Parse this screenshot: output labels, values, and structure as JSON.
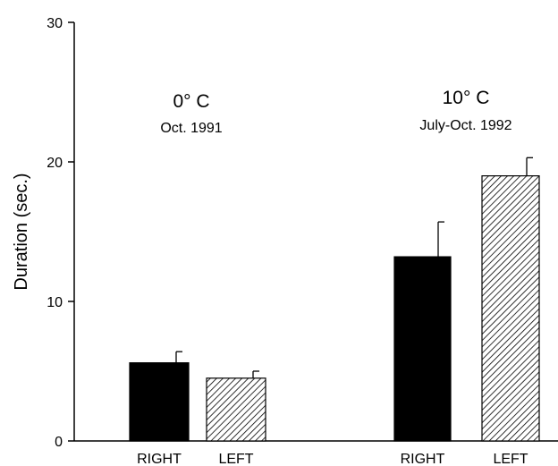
{
  "chart_data": {
    "type": "bar",
    "title": "",
    "xlabel": "",
    "ylabel": "Duration (sec.)",
    "ylim": [
      0,
      30
    ],
    "yticks": [
      0,
      10,
      20,
      30
    ],
    "grid": false,
    "legend": "none",
    "groups": [
      {
        "title": "0° C",
        "subtitle": "Oct. 1991",
        "bars": [
          {
            "category": "RIGHT",
            "value": 5.6,
            "error": 0.8,
            "fill": "solid"
          },
          {
            "category": "LEFT",
            "value": 4.5,
            "error": 0.5,
            "fill": "hatched"
          }
        ]
      },
      {
        "title": "10° C",
        "subtitle": "July-Oct. 1992",
        "bars": [
          {
            "category": "RIGHT",
            "value": 13.2,
            "error": 2.5,
            "fill": "solid"
          },
          {
            "category": "LEFT",
            "value": 19.0,
            "error": 1.3,
            "fill": "hatched"
          }
        ]
      }
    ],
    "colors": {
      "bar": "#000000",
      "hatch": "#000000",
      "axis": "#000000"
    }
  }
}
